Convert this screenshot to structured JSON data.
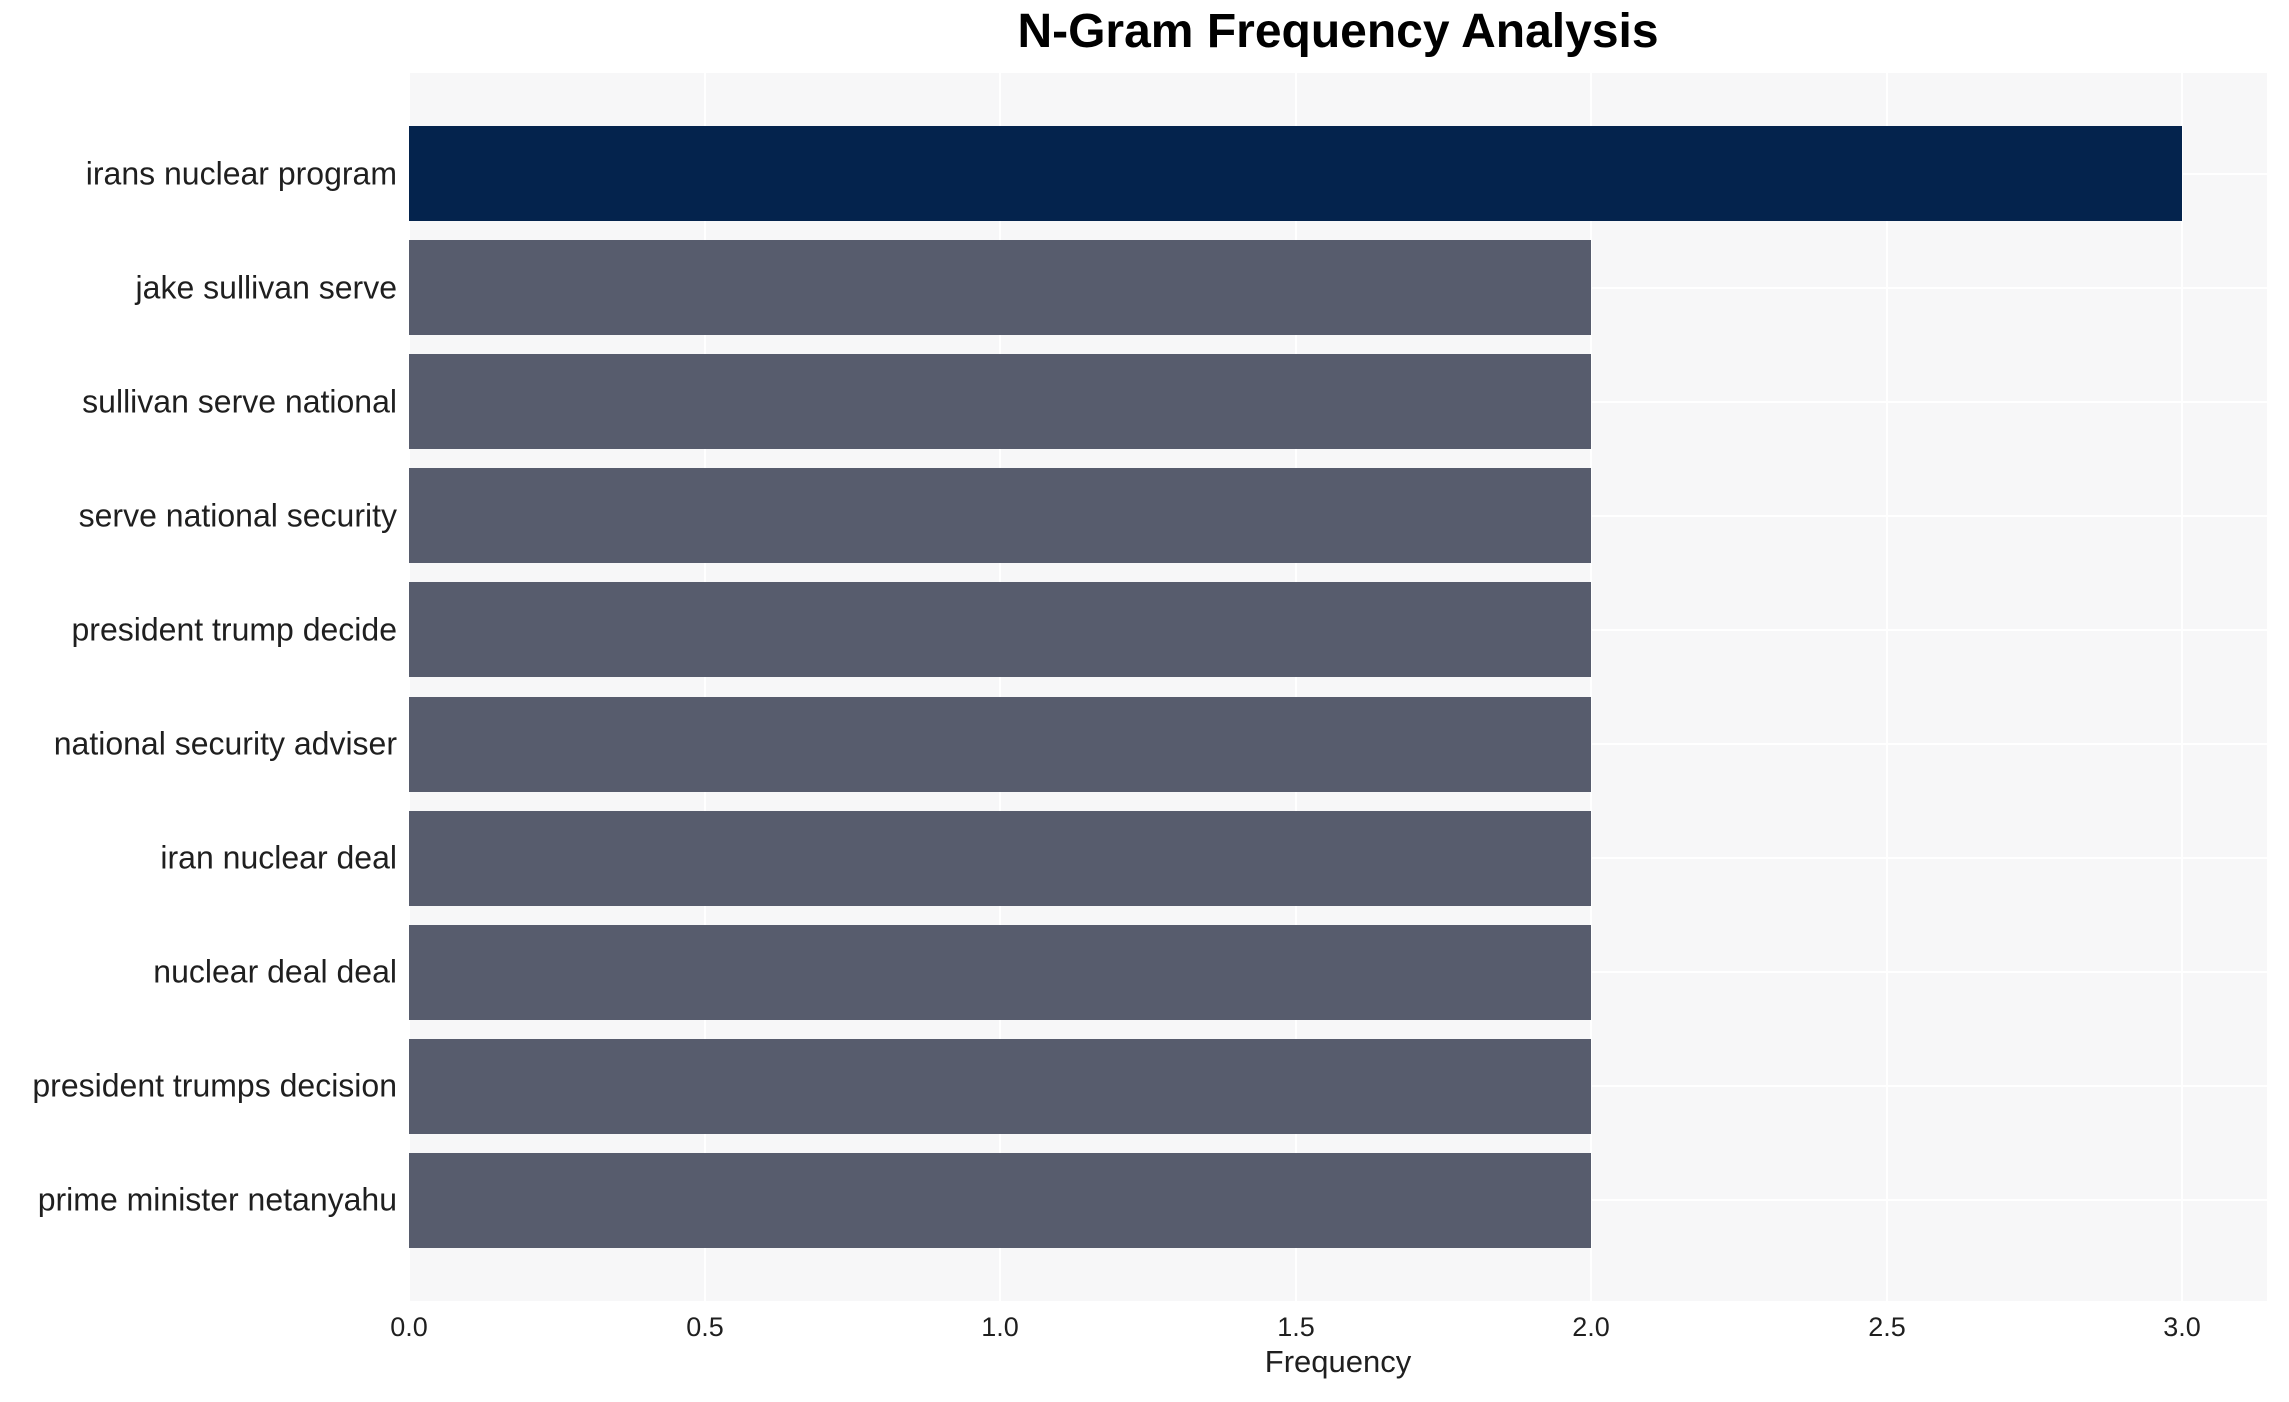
{
  "chart_data": {
    "type": "bar",
    "orientation": "horizontal",
    "title": "N-Gram Frequency Analysis",
    "xlabel": "Frequency",
    "ylabel": "",
    "categories": [
      "irans nuclear program",
      "jake sullivan serve",
      "sullivan serve national",
      "serve national security",
      "president trump decide",
      "national security adviser",
      "iran nuclear deal",
      "nuclear deal deal",
      "president trumps decision",
      "prime minister netanyahu"
    ],
    "values": [
      3,
      2,
      2,
      2,
      2,
      2,
      2,
      2,
      2,
      2
    ],
    "bar_colors": [
      "#04234d",
      "#575c6d",
      "#575c6d",
      "#575c6d",
      "#575c6d",
      "#575c6d",
      "#575c6d",
      "#575c6d",
      "#575c6d",
      "#575c6d"
    ],
    "xticks": [
      0.0,
      0.5,
      1.0,
      1.5,
      2.0,
      2.5,
      3.0
    ],
    "xtick_labels": [
      "0.0",
      "0.5",
      "1.0",
      "1.5",
      "2.0",
      "2.5",
      "3.0"
    ],
    "xlim": [
      0,
      3.14
    ],
    "grid": true,
    "legend": "none",
    "colors": {
      "highlight_bar": "#04234d",
      "default_bar": "#575c6d",
      "plot_background": "#f7f7f8",
      "gridline": "#ffffff",
      "tick_text": "#1f1f1f",
      "title_text": "#000000"
    }
  }
}
